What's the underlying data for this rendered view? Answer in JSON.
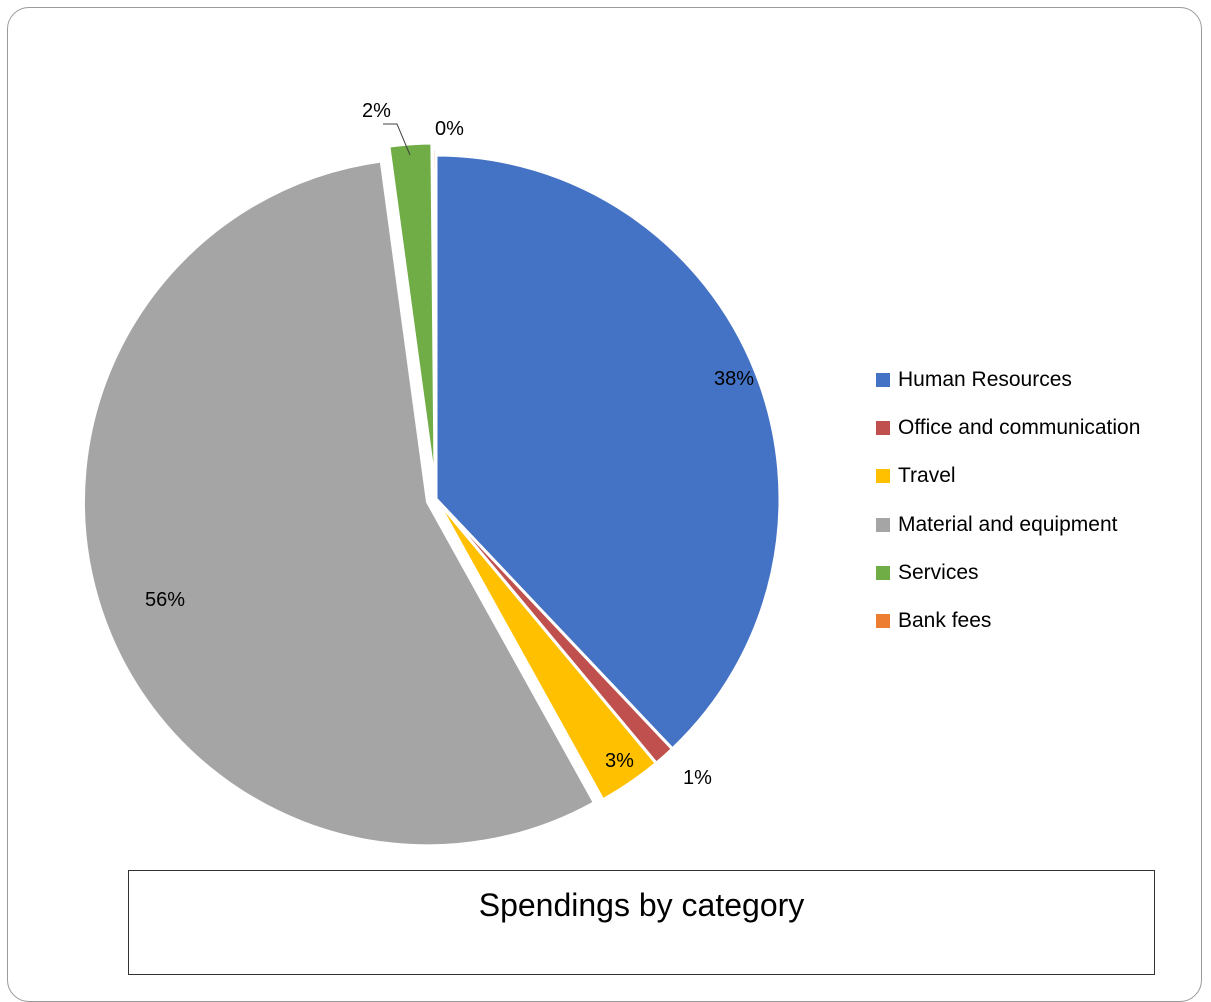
{
  "chart_data": {
    "type": "pie",
    "title": "Spendings by category",
    "legend_position": "right",
    "slices": [
      {
        "name": "Human Resources",
        "value": 38,
        "label": "38%",
        "color": "#4472C4"
      },
      {
        "name": "Office and communication",
        "value": 1,
        "label": "1%",
        "color": "#C0504D"
      },
      {
        "name": "Travel",
        "value": 3,
        "label": "3%",
        "color": "#FFC000"
      },
      {
        "name": "Material and equipment",
        "value": 56,
        "label": "56%",
        "color": "#A5A5A5"
      },
      {
        "name": "Services",
        "value": 2,
        "label": "2%",
        "color": "#70AD47"
      },
      {
        "name": "Bank fees",
        "value": 0.15,
        "label": "0%",
        "color": "#ED7D31"
      }
    ]
  }
}
